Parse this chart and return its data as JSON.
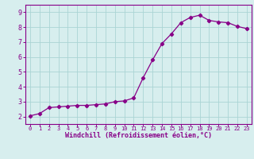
{
  "x": [
    0,
    1,
    2,
    3,
    4,
    5,
    6,
    7,
    8,
    9,
    10,
    11,
    12,
    13,
    14,
    15,
    16,
    17,
    18,
    19,
    20,
    21,
    22,
    23
  ],
  "y": [
    2.05,
    2.2,
    2.6,
    2.65,
    2.7,
    2.75,
    2.75,
    2.8,
    2.85,
    3.0,
    3.05,
    3.25,
    4.6,
    5.8,
    6.9,
    7.55,
    8.3,
    8.65,
    8.8,
    8.45,
    8.35,
    8.3,
    8.05,
    7.9
  ],
  "xlabel": "Windchill (Refroidissement éolien,°C)",
  "xlim": [
    -0.5,
    23.5
  ],
  "ylim": [
    1.5,
    9.5
  ],
  "yticks": [
    2,
    3,
    4,
    5,
    6,
    7,
    8,
    9
  ],
  "xticks": [
    0,
    1,
    2,
    3,
    4,
    5,
    6,
    7,
    8,
    9,
    10,
    11,
    12,
    13,
    14,
    15,
    16,
    17,
    18,
    19,
    20,
    21,
    22,
    23
  ],
  "line_color": "#880088",
  "marker": "D",
  "marker_size": 2.2,
  "bg_color": "#d7eeee",
  "grid_color": "#aad4d4",
  "spine_color": "#880088",
  "tick_color": "#880088",
  "label_color": "#880088",
  "font_family": "monospace",
  "xlabel_fontsize": 6.0,
  "xtick_fontsize": 5.0,
  "ytick_fontsize": 6.0,
  "linewidth": 0.9
}
